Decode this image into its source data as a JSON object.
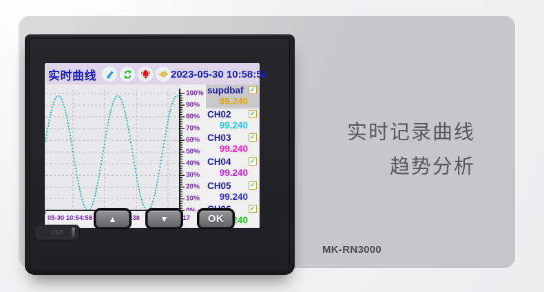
{
  "page": {
    "tagline_line1": "实时记录曲线",
    "tagline_line2": "趋势分析",
    "model": "MK-RN3000"
  },
  "device": {
    "buttons": {
      "up": "▲",
      "down": "▼",
      "ok": "OK"
    },
    "usb_cover_label": "USB"
  },
  "screen": {
    "topbar": {
      "title": "实时曲线",
      "datetime": "2023-05-30 10:58:56",
      "icons": [
        {
          "name": "edit-pen-icon",
          "color": "#2e9ad4"
        },
        {
          "name": "refresh-icon",
          "color": "#1fc01f"
        },
        {
          "name": "alarm-bell-icon",
          "color": "#e01414"
        },
        {
          "name": "usb-icon",
          "color": "#d8a818"
        }
      ]
    },
    "channels": [
      {
        "name": "supdbaf",
        "value": "99.240",
        "value_color": "#e2a511",
        "selected": true,
        "checked": true
      },
      {
        "name": "CH02",
        "value": "99.240",
        "value_color": "#2ec7f2",
        "selected": false,
        "checked": true
      },
      {
        "name": "CH03",
        "value": "99.240",
        "value_color": "#fb1bd1",
        "selected": false,
        "checked": true
      },
      {
        "name": "CH04",
        "value": "99.240",
        "value_color": "#c322e0",
        "selected": false,
        "checked": true
      },
      {
        "name": "CH05",
        "value": "99.240",
        "value_color": "#2a2ad0",
        "selected": false,
        "checked": true
      },
      {
        "name": "CH06",
        "value": "99.240",
        "value_color": "#1fca1f",
        "selected": false,
        "checked": true
      }
    ]
  },
  "chart_data": {
    "type": "line",
    "title": "实时曲线",
    "xlabel": "",
    "ylabel": "",
    "ylim": [
      0,
      100
    ],
    "grid": true,
    "legend_position": "right",
    "y_tick_labels": [
      "100%",
      "90%",
      "80%",
      "70%",
      "60%",
      "50%",
      "40%",
      "30%",
      "20%",
      "10%",
      "0%"
    ],
    "x_tick_labels": [
      "05-30 10:54:58",
      "05-30 10:56:38",
      "05-30 10:58:17"
    ],
    "series": [
      {
        "name": "supdbaf",
        "color": "#26b6c4",
        "style": "dotted",
        "waveform": "sine",
        "min_pct": 0,
        "max_pct": 98,
        "cycles_visible": 2.26,
        "start_pct": 59,
        "direction": "rising"
      }
    ]
  }
}
